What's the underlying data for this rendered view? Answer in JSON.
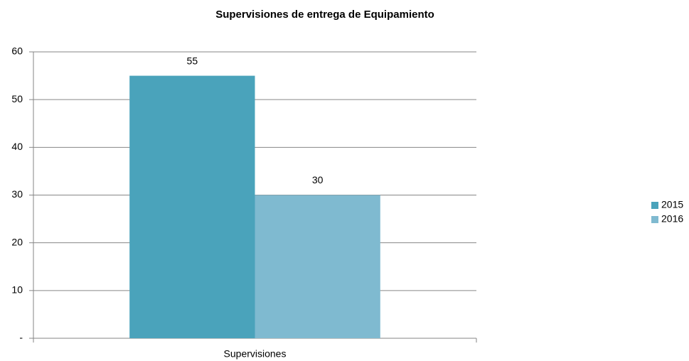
{
  "chart_data": {
    "type": "bar",
    "title": "Supervisiones de entrega de Equipamiento",
    "categories": [
      "Supervisiones"
    ],
    "series": [
      {
        "name": "2015",
        "color": "#4aa3bb",
        "values": [
          55
        ]
      },
      {
        "name": "2016",
        "color": "#7fbad0",
        "values": [
          30
        ]
      }
    ],
    "ylim": [
      0,
      60
    ],
    "yticks": [
      {
        "value": 0,
        "label": "-"
      },
      10,
      20,
      30,
      40,
      50,
      60
    ],
    "grid": true,
    "legend": "right"
  }
}
